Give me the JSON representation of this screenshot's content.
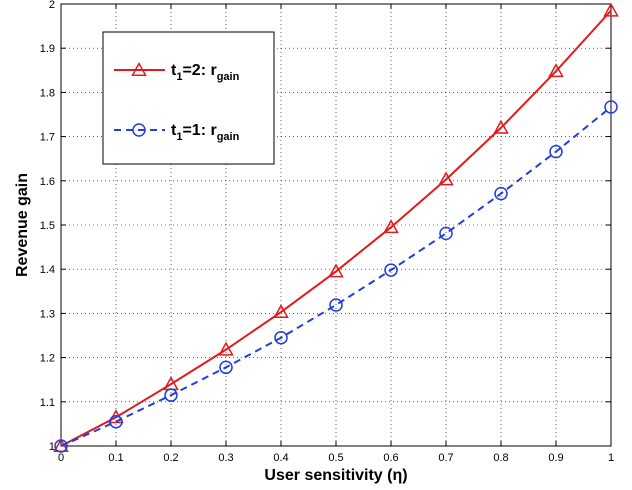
{
  "chart_data": {
    "type": "line",
    "xlabel": "User sensitivity (η)",
    "ylabel": "Revenue gain",
    "xlim": [
      0,
      1
    ],
    "ylim": [
      1,
      2
    ],
    "xticks": [
      "0",
      "0.1",
      "0.2",
      "0.3",
      "0.4",
      "0.5",
      "0.6",
      "0.7",
      "0.8",
      "0.9",
      "1"
    ],
    "yticks": [
      "1",
      "1.1",
      "1.2",
      "1.3",
      "1.4",
      "1.5",
      "1.6",
      "1.7",
      "1.8",
      "1.9",
      "2"
    ],
    "grid": true,
    "legend_position": "top-left",
    "x": [
      0,
      0.1,
      0.2,
      0.3,
      0.4,
      0.5,
      0.6,
      0.7,
      0.8,
      0.9,
      1.0
    ],
    "series": [
      {
        "name": "t1=2: rgain",
        "label_main": "t",
        "label_sub1": "1",
        "label_mid": "=2: r",
        "label_sub2": "gain",
        "color": "#e31a1c",
        "line_style": "solid",
        "marker": "triangle",
        "values": [
          1.0,
          1.065,
          1.14,
          1.218,
          1.303,
          1.395,
          1.495,
          1.603,
          1.72,
          1.848,
          1.985
        ]
      },
      {
        "name": "t1=1: rgain",
        "label_main": "t",
        "label_sub1": "1",
        "label_mid": "=1: r",
        "label_sub2": "gain",
        "color": "#1f3fe0",
        "line_style": "dashed",
        "marker": "circle",
        "values": [
          1.0,
          1.055,
          1.115,
          1.178,
          1.245,
          1.319,
          1.398,
          1.481,
          1.571,
          1.666,
          1.767
        ]
      }
    ]
  }
}
